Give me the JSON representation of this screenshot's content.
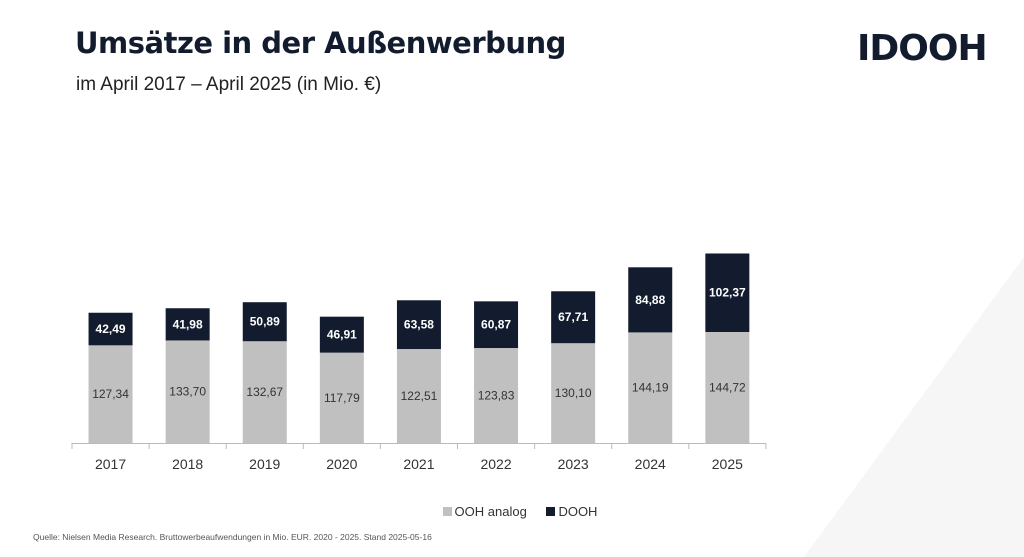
{
  "title": "Umsätze in der Außenwerbung",
  "subtitle": "im April 2017 – April 2025 (in Mio. €)",
  "logo": "IDOOH",
  "source": "Quelle: Nielsen Media Research. Bruttowerbeaufwendungen in Mio. EUR. 2020 - 2025. Stand 2025-05-16",
  "chart_data": {
    "type": "bar",
    "stacked": true,
    "title": "Umsätze in der Außenwerbung",
    "subtitle": "im April 2017 – April 2025 (in Mio. €)",
    "categories": [
      "2017",
      "2018",
      "2019",
      "2020",
      "2021",
      "2022",
      "2023",
      "2024",
      "2025"
    ],
    "series": [
      {
        "name": "OOH analog",
        "color": "#c0c0c0",
        "label_color": "#333333",
        "values": [
          127.34,
          133.7,
          132.67,
          117.79,
          122.51,
          123.83,
          130.1,
          144.19,
          144.72
        ],
        "labels": [
          "127,34",
          "133,70",
          "132,67",
          "117,79",
          "122,51",
          "123,83",
          "130,10",
          "144,19",
          "144,72"
        ]
      },
      {
        "name": "DOOH",
        "color": "#121c2e",
        "label_color": "#ffffff",
        "values": [
          42.49,
          41.98,
          50.89,
          46.91,
          63.58,
          60.87,
          67.71,
          84.88,
          102.37
        ],
        "labels": [
          "42,49",
          "41,98",
          "50,89",
          "46,91",
          "63,58",
          "60,87",
          "67,71",
          "84,88",
          "102,37"
        ]
      }
    ],
    "legend": "bottom",
    "grid": false,
    "ylim": [
      0,
      260
    ]
  }
}
